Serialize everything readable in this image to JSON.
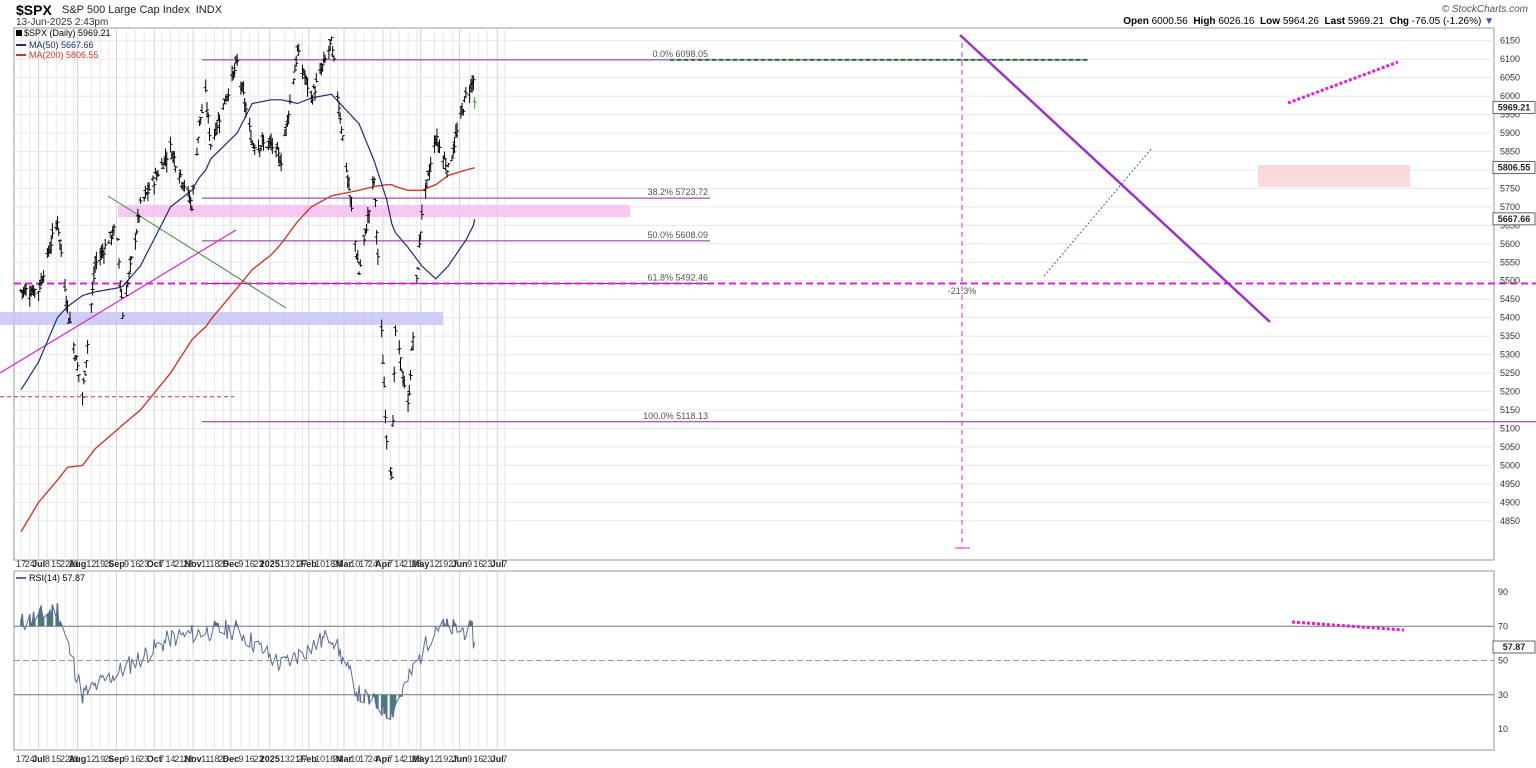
{
  "header": {
    "symbol": "$SPX",
    "name": "S&P 500 Large Cap Index",
    "exchange": "INDX",
    "date_time": "13-Jun-2025 2:43pm",
    "credit": "© StockCharts.com",
    "open_label": "Open",
    "open": "6000.56",
    "high_label": "High",
    "high": "6026.16",
    "low_label": "Low",
    "low": "5964.26",
    "last_label": "Last",
    "last": "5969.21",
    "chg_label": "Chg",
    "chg": "-76.05 (-1.26%)",
    "chg_arrow": "▼"
  },
  "legend": {
    "price": "$SPX (Daily) 5969.21",
    "ma50": "MA(50) 5667.66",
    "ma200": "MA(200) 5806.55",
    "rsi": "RSI(14) 57.87"
  },
  "price_badges": {
    "last": "5969.21",
    "ma200": "5806.55",
    "ma50": "5667.66",
    "rsi": "57.87"
  },
  "annotations": {
    "fib_0": "0.0% 6098.05",
    "fib_382": "38.2% 5723.72",
    "fib_50": "50.0% 5608.09",
    "fib_618": "61.8% 5492.46",
    "fib_100": "100.0% 5118.13",
    "drawdown": "-21.3%"
  },
  "colors": {
    "price_bar": "#000000",
    "last_bar": "#22aa22",
    "ma50": "#1f2a7a",
    "ma200": "#d23a2a",
    "fib": "#8a2a9a",
    "magenta": "#e020d0",
    "trend": "#a030c8",
    "rsi_line": "#5a6a9a",
    "rsi_fill": "#4a7a7a",
    "zone_pink": "#f6c0f0",
    "zone_blue": "#c6c6f4",
    "zone_red": "#f6cccc"
  },
  "chart_data": [
    {
      "type": "line",
      "title": "$SPX S&P 500 Large Cap Index",
      "subtitle": "Daily",
      "ylim": [
        4800,
        6175
      ],
      "y_ticks": [
        4850,
        4900,
        4950,
        5000,
        5050,
        5100,
        5150,
        5200,
        5250,
        5300,
        5350,
        5400,
        5450,
        5500,
        5550,
        5600,
        5650,
        5700,
        5750,
        5800,
        5850,
        5900,
        5950,
        6000,
        6050,
        6100,
        6150
      ],
      "x_ticks": [
        "17",
        "24",
        "Jul",
        "8",
        "15",
        "22",
        "29",
        "Aug",
        "12",
        "19",
        "26",
        "Sep",
        "9",
        "16",
        "23",
        "Oct",
        "7",
        "14",
        "21",
        "28",
        "Nov",
        "11",
        "18",
        "25",
        "Dec",
        "9",
        "16",
        "23",
        "2025",
        "13",
        "21",
        "27",
        "Feb",
        "10",
        "18",
        "24",
        "Mar",
        "10",
        "17",
        "24",
        "Apr",
        "7",
        "14",
        "21",
        "28",
        "May",
        "12",
        "19",
        "27",
        "Jun",
        "9",
        "16",
        "23",
        "Jul",
        "7"
      ],
      "x": [
        "2024-06-17",
        "2024-07-01",
        "2024-07-16",
        "2024-07-24",
        "2024-08-05",
        "2024-08-15",
        "2024-09-01",
        "2024-09-06",
        "2024-09-20",
        "2024-10-14",
        "2024-10-31",
        "2024-11-06",
        "2024-11-11",
        "2024-11-15",
        "2024-12-06",
        "2024-12-18",
        "2025-01-02",
        "2025-01-10",
        "2025-01-23",
        "2025-02-03",
        "2025-02-19",
        "2025-03-13",
        "2025-03-25",
        "2025-04-04",
        "2025-04-08",
        "2025-04-11",
        "2025-04-21",
        "2025-05-02",
        "2025-05-13",
        "2025-05-23",
        "2025-06-06",
        "2025-06-12",
        "2025-06-13"
      ],
      "series": [
        {
          "name": "$SPX (Daily)",
          "values": [
            5473,
            5475,
            5667,
            5427,
            5186,
            5543,
            5648,
            5408,
            5702,
            5859,
            5705,
            5929,
            6001,
            5870,
            6090,
            5872,
            5868,
            5827,
            6119,
            5994,
            6144,
            5521,
            5776,
            5074,
            4982,
            5363,
            5158,
            5686,
            5886,
            5802,
            6000,
            6045,
            5969
          ]
        },
        {
          "name": "MA(50)",
          "values": [
            5205,
            5280,
            5400,
            5430,
            5460,
            5470,
            5480,
            5485,
            5540,
            5700,
            5745,
            5780,
            5800,
            5830,
            5900,
            5980,
            5990,
            5990,
            5980,
            5995,
            6005,
            5925,
            5825,
            5720,
            5655,
            5630,
            5590,
            5540,
            5505,
            5540,
            5610,
            5650,
            5667
          ]
        },
        {
          "name": "MA(200)",
          "values": [
            4820,
            4900,
            4960,
            4995,
            5000,
            5045,
            5095,
            5110,
            5150,
            5250,
            5340,
            5360,
            5375,
            5395,
            5480,
            5530,
            5570,
            5600,
            5660,
            5700,
            5730,
            5745,
            5755,
            5760,
            5760,
            5755,
            5745,
            5745,
            5760,
            5785,
            5800,
            5805,
            5806
          ]
        }
      ]
    },
    {
      "type": "line",
      "title": "RSI(14)",
      "ylim": [
        0,
        100
      ],
      "y_ticks": [
        10,
        30,
        50,
        70,
        90
      ],
      "reference_lines": [
        30,
        50,
        70
      ],
      "x": [
        "2024-06-17",
        "2024-07-16",
        "2024-08-05",
        "2024-09-06",
        "2024-10-14",
        "2024-11-11",
        "2024-12-06",
        "2025-01-10",
        "2025-02-19",
        "2025-03-13",
        "2025-04-08",
        "2025-05-13",
        "2025-06-11",
        "2025-06-13"
      ],
      "series": [
        {
          "name": "RSI(14)",
          "values": [
            72,
            80,
            30,
            45,
            63,
            67,
            68,
            47,
            65,
            30,
            20,
            70,
            67,
            58
          ]
        }
      ]
    }
  ]
}
